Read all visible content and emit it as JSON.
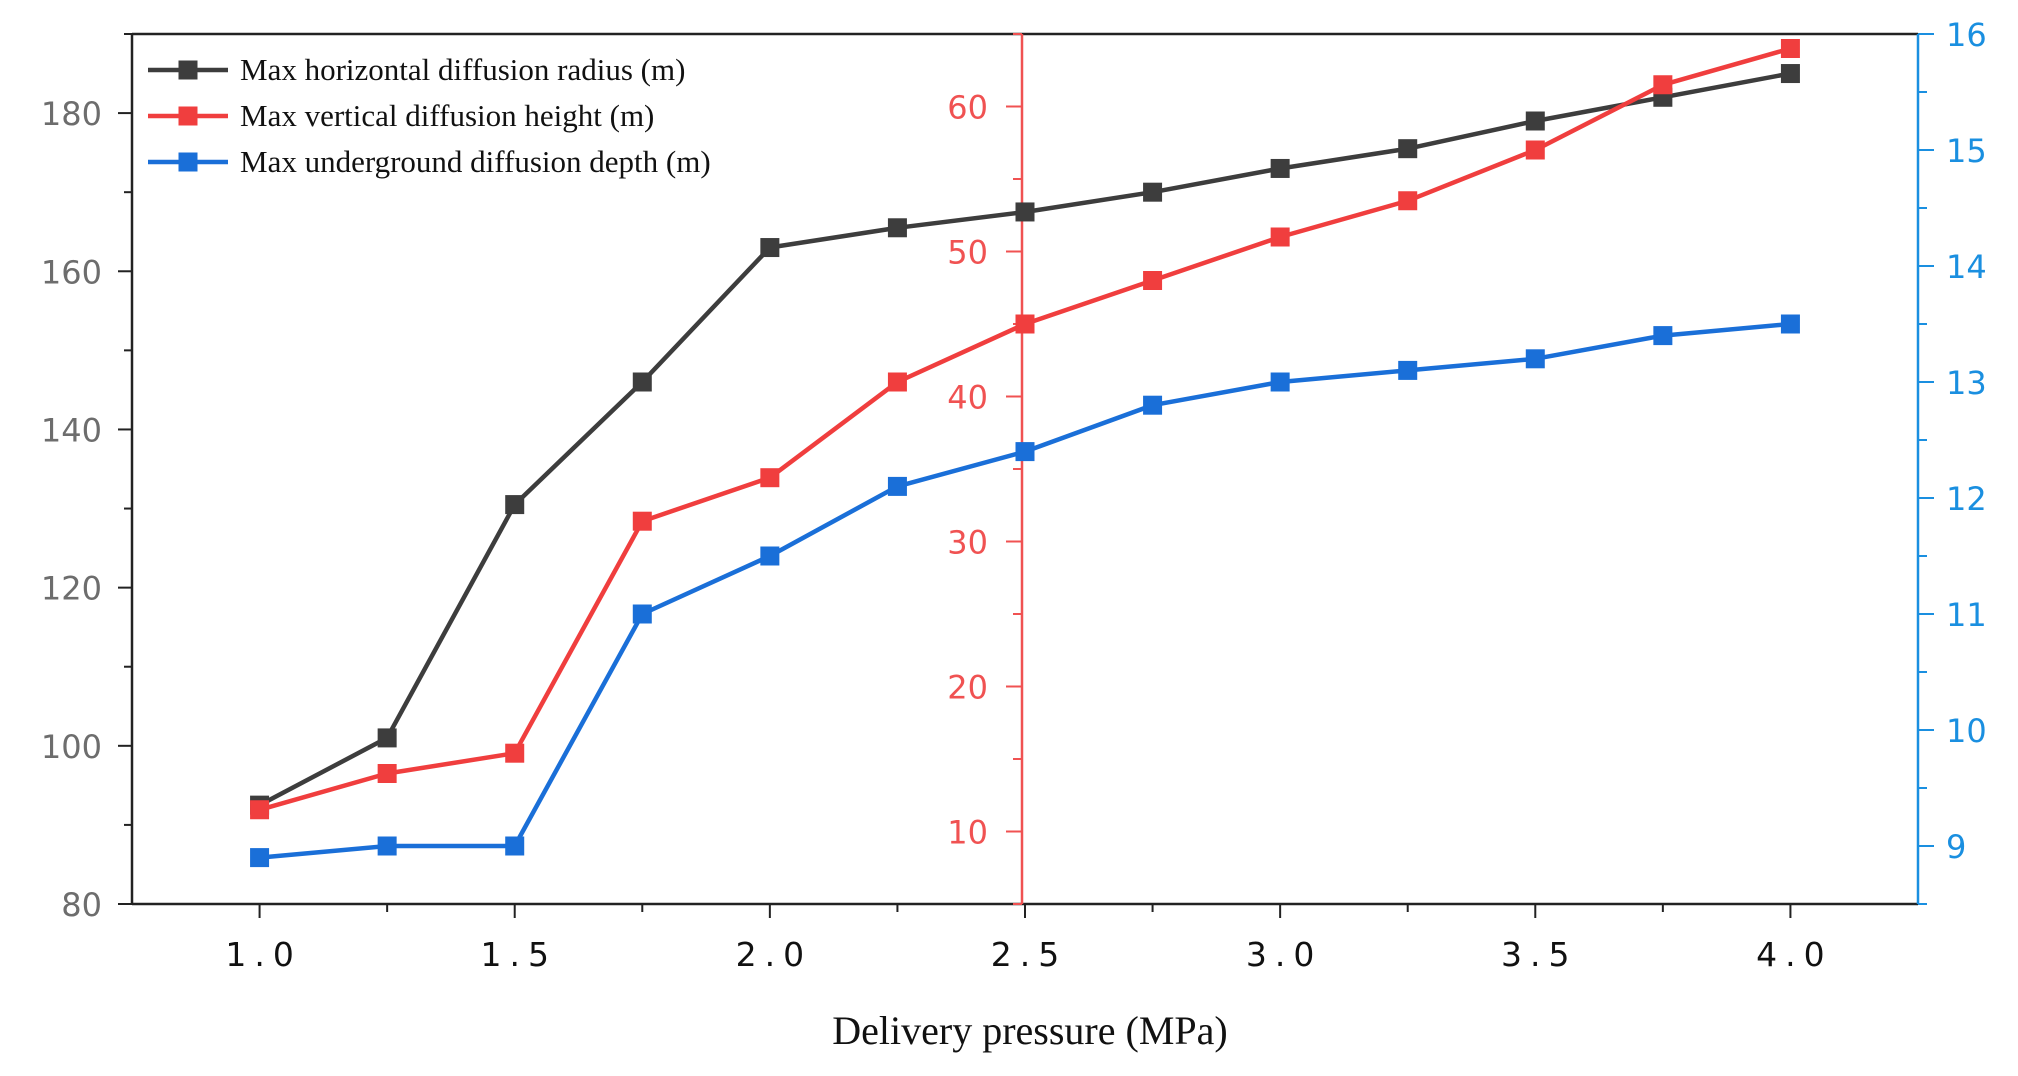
{
  "chart_data": {
    "type": "line",
    "title": "",
    "xlabel": "Delivery pressure (MPa)",
    "x": [
      1.0,
      1.25,
      1.5,
      1.75,
      2.0,
      2.25,
      2.5,
      2.75,
      3.0,
      3.25,
      3.5,
      3.75,
      4.0
    ],
    "xlim": [
      0.75,
      4.25
    ],
    "x_tick_values": [
      1.0,
      1.5,
      2.0,
      2.5,
      3.0,
      3.5,
      4.0
    ],
    "x_tick_labels": [
      "1.0",
      "1.5",
      "2.0",
      "2.5",
      "3.0",
      "3.5",
      "4.0"
    ],
    "axes": [
      {
        "id": "left",
        "color": "#6d6d6d",
        "ylim": [
          80,
          190
        ],
        "tick_values": [
          80,
          100,
          120,
          140,
          160,
          180
        ],
        "tick_labels": [
          "80",
          "100",
          "120",
          "140",
          "160",
          "180"
        ]
      },
      {
        "id": "middle",
        "color": "#f05252",
        "ylim": [
          5,
          65
        ],
        "tick_values": [
          10,
          20,
          30,
          40,
          50,
          60
        ],
        "tick_labels": [
          "10",
          "20",
          "30",
          "40",
          "50",
          "60"
        ]
      },
      {
        "id": "right",
        "color": "#1a8fe0",
        "ylim": [
          8.5,
          16
        ],
        "tick_values": [
          9,
          10,
          11,
          12,
          13,
          14,
          15,
          16
        ],
        "tick_labels": [
          "9",
          "10",
          "11",
          "12",
          "13",
          "14",
          "15",
          "16"
        ]
      }
    ],
    "series": [
      {
        "name": "Max horizontal diffusion radius (m)",
        "axis": "left",
        "color": "#3d3d3d",
        "values": [
          92.5,
          101,
          130.5,
          146,
          163,
          165.5,
          167.5,
          170,
          173,
          175.5,
          179,
          182,
          185
        ]
      },
      {
        "name": "Max vertical diffusion height (m)",
        "axis": "middle",
        "color": "#f03e3e",
        "values": [
          11.5,
          14,
          15.4,
          31.4,
          34.4,
          41,
          45,
          48,
          51,
          53.5,
          57,
          61.5,
          64
        ]
      },
      {
        "name": "Max underground diffusion depth (m)",
        "axis": "right",
        "color": "#1a6fd8",
        "values": [
          8.9,
          9.0,
          9.0,
          11.0,
          11.5,
          12.1,
          12.4,
          12.8,
          13.0,
          13.1,
          13.2,
          13.4,
          13.5
        ]
      }
    ],
    "legend_position": "top-left",
    "grid": false
  }
}
